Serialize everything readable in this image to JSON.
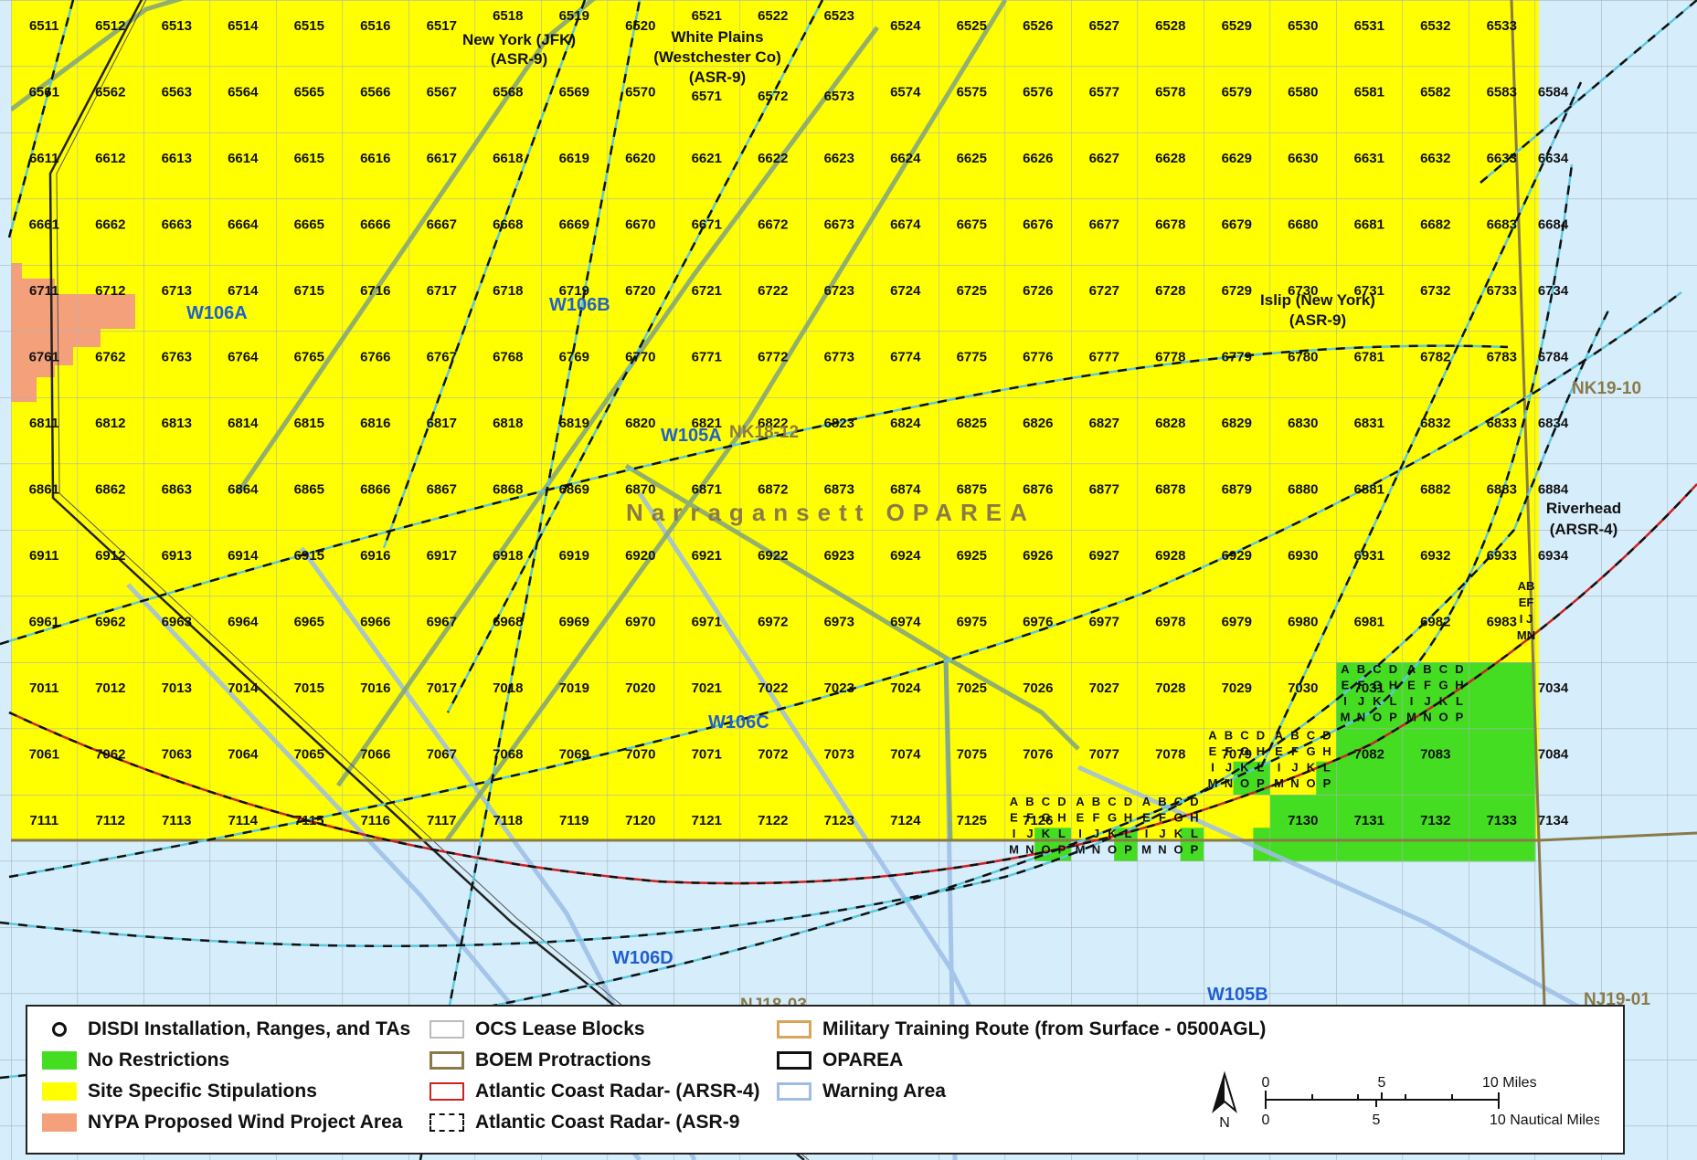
{
  "map": {
    "block_rows": [
      {
        "y": 0,
        "blocks": [
          "6511",
          "6512",
          "6513",
          "6514",
          "6515",
          "6516",
          "6517",
          "6518",
          "6519",
          "6520",
          "6521",
          "6522",
          "6523",
          "6524",
          "6525",
          "6526",
          "6527",
          "6528",
          "6529",
          "6530",
          "6531",
          "6532",
          "6533"
        ]
      },
      {
        "y": 1,
        "blocks": [
          "6561",
          "6562",
          "6563",
          "6564",
          "6565",
          "6566",
          "6567",
          "6568",
          "6569",
          "6570",
          "6571",
          "6572",
          "6573",
          "6574",
          "6575",
          "6576",
          "6577",
          "6578",
          "6579",
          "6580",
          "6581",
          "6582",
          "6583",
          "6584"
        ]
      },
      {
        "y": 2,
        "blocks": [
          "6611",
          "6612",
          "6613",
          "6614",
          "6615",
          "6616",
          "6617",
          "6618",
          "6619",
          "6620",
          "6621",
          "6622",
          "6623",
          "6624",
          "6625",
          "6626",
          "6627",
          "6628",
          "6629",
          "6630",
          "6631",
          "6632",
          "6633",
          "6634"
        ]
      },
      {
        "y": 3,
        "blocks": [
          "6661",
          "6662",
          "6663",
          "6664",
          "6665",
          "6666",
          "6667",
          "6668",
          "6669",
          "6670",
          "6671",
          "6672",
          "6673",
          "6674",
          "6675",
          "6676",
          "6677",
          "6678",
          "6679",
          "6680",
          "6681",
          "6682",
          "6683",
          "6684"
        ]
      },
      {
        "y": 4,
        "blocks": [
          "6711",
          "6712",
          "6713",
          "6714",
          "6715",
          "6716",
          "6717",
          "6718",
          "6719",
          "6720",
          "6721",
          "6722",
          "6723",
          "6724",
          "6725",
          "6726",
          "6727",
          "6728",
          "6729",
          "6730",
          "6731",
          "6732",
          "6733",
          "6734"
        ]
      },
      {
        "y": 5,
        "blocks": [
          "6761",
          "6762",
          "6763",
          "6764",
          "6765",
          "6766",
          "6767",
          "6768",
          "6769",
          "6770",
          "6771",
          "6772",
          "6773",
          "6774",
          "6775",
          "6776",
          "6777",
          "6778",
          "6779",
          "6780",
          "6781",
          "6782",
          "6783",
          "6784"
        ]
      },
      {
        "y": 6,
        "blocks": [
          "6811",
          "6812",
          "6813",
          "6814",
          "6815",
          "6816",
          "6817",
          "6818",
          "6819",
          "6820",
          "6821",
          "6822",
          "6823",
          "6824",
          "6825",
          "6826",
          "6827",
          "6828",
          "6829",
          "6830",
          "6831",
          "6832",
          "6833",
          "6834"
        ]
      },
      {
        "y": 7,
        "blocks": [
          "6861",
          "6862",
          "6863",
          "6864",
          "6865",
          "6866",
          "6867",
          "6868",
          "6869",
          "6870",
          "6871",
          "6872",
          "6873",
          "6874",
          "6875",
          "6876",
          "6877",
          "6878",
          "6879",
          "6880",
          "6881",
          "6882",
          "6883",
          "6884"
        ]
      },
      {
        "y": 8,
        "blocks": [
          "6911",
          "6912",
          "6913",
          "6914",
          "6915",
          "6916",
          "6917",
          "6918",
          "6919",
          "6920",
          "6921",
          "6922",
          "6923",
          "6924",
          "6925",
          "6926",
          "6927",
          "6928",
          "6929",
          "6930",
          "6931",
          "6932",
          "6933",
          "6934"
        ]
      },
      {
        "y": 9,
        "blocks": [
          "6961",
          "6962",
          "6963",
          "6964",
          "6965",
          "6966",
          "6967",
          "6968",
          "6969",
          "6970",
          "6971",
          "6972",
          "6973",
          "6974",
          "6975",
          "6976",
          "6977",
          "6978",
          "6979",
          "6980",
          "6981",
          "6982",
          "6983",
          ""
        ]
      },
      {
        "y": 10,
        "blocks": [
          "7011",
          "7012",
          "7013",
          "7014",
          "7015",
          "7016",
          "7017",
          "7018",
          "7019",
          "7020",
          "7021",
          "7022",
          "7023",
          "7024",
          "7025",
          "7026",
          "7027",
          "7028",
          "7029",
          "7030",
          "7031",
          "",
          "",
          "7034"
        ]
      },
      {
        "y": 11,
        "blocks": [
          "7061",
          "7062",
          "7063",
          "7064",
          "7065",
          "7066",
          "7067",
          "7068",
          "7069",
          "7070",
          "7071",
          "7072",
          "7073",
          "7074",
          "7075",
          "7076",
          "7077",
          "7078",
          "7079",
          "",
          "7082",
          "7083",
          "",
          "7084"
        ]
      },
      {
        "y": 12,
        "blocks": [
          "7111",
          "7112",
          "7113",
          "7114",
          "7115",
          "7116",
          "7117",
          "7118",
          "7119",
          "7120",
          "7121",
          "7122",
          "7123",
          "7124",
          "7125",
          "7126",
          "",
          "",
          "",
          "7130",
          "7131",
          "7132",
          "7133",
          "7134"
        ]
      }
    ],
    "aliquot_letters": [
      "A",
      "B",
      "C",
      "D",
      "E",
      "F",
      "G",
      "H",
      "I",
      "J",
      "K",
      "L",
      "M",
      "N",
      "O",
      "P"
    ],
    "labels": {
      "jfk": [
        "New York (JFK)",
        "(ASR-9)"
      ],
      "white_plains": [
        "White Plains",
        "(Westchester Co)",
        "(ASR-9)"
      ],
      "islip": [
        "Islip (New York)",
        "(ASR-9)"
      ],
      "riverhead": [
        "Riverhead",
        "(ARSR-4)"
      ],
      "w106a": "W106A",
      "w106b": "W106B",
      "w105a": "W105A",
      "w106c": "W106C",
      "w106d": "W106D",
      "w105b": "W105B",
      "nk1812": "NK18-12",
      "nk1910": "NK19-10",
      "nj1803": "NJ18-03",
      "nj1901": "NJ19-01",
      "oparea": "Narragansett OPAREA",
      "edge_ab": "AB",
      "edge_ef": "EF",
      "edge_ij": "I J",
      "edge_mn": "MN"
    },
    "colors": {
      "ocean": "#d6eefb",
      "site_specific": "#ffff00",
      "no_restrictions": "#44dd22",
      "nypa": "#f4a07a",
      "warning_area": "#9dbde6",
      "mtr": "#7aa27a",
      "boem": "#8a7a4a",
      "arsr4": "#cc2222",
      "asr9": "#5bc8e0"
    }
  },
  "legend": {
    "items": [
      {
        "label": "DISDI Installation, Ranges, and TAs",
        "symbol": "dot-icon"
      },
      {
        "label": "No Restrictions",
        "symbol": "green-fill-swatch"
      },
      {
        "label": "Site Specific Stipulations",
        "symbol": "yellow-fill-swatch"
      },
      {
        "label": "NYPA Proposed Wind Project Area",
        "symbol": "salmon-fill-swatch"
      },
      {
        "label": "OCS Lease Blocks",
        "symbol": "white-box-swatch"
      },
      {
        "label": "BOEM Protractions",
        "symbol": "olive-box-swatch"
      },
      {
        "label": "Atlantic Coast Radar- (ARSR-4)",
        "symbol": "red-dash-swatch"
      },
      {
        "label": "Atlantic Coast Radar- (ASR-9",
        "symbol": "cyan-dash-swatch"
      },
      {
        "label": "Military Training Route (from Surface - 0500AGL)",
        "symbol": "tan-box-swatch"
      },
      {
        "label": "OPAREA",
        "symbol": "black-box-swatch"
      },
      {
        "label": "Warning Area",
        "symbol": "blue-box-swatch"
      }
    ],
    "north": "N",
    "scale": {
      "miles_ticks": [
        "0",
        "5",
        "10 Miles"
      ],
      "nm_ticks": [
        "0",
        "5",
        "10 Nautical Miles"
      ]
    }
  }
}
